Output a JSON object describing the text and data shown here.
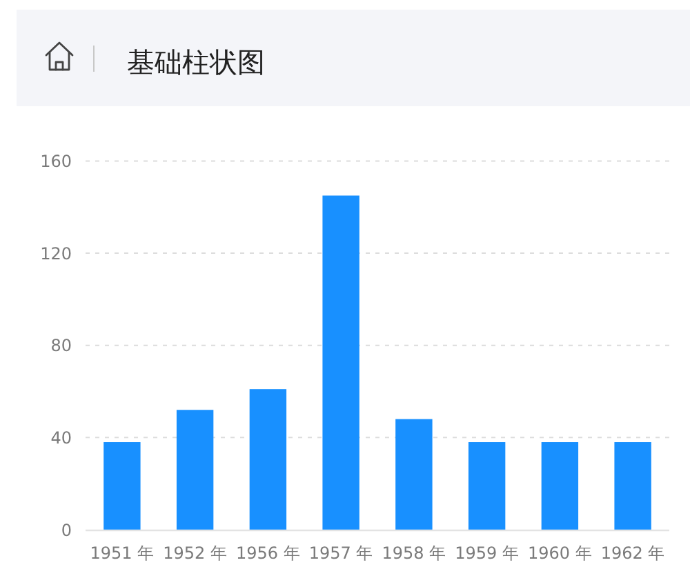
{
  "chart_data": {
    "type": "bar",
    "title": "基础柱状图",
    "categories": [
      "1951 年",
      "1952 年",
      "1956 年",
      "1957 年",
      "1958 年",
      "1959 年",
      "1960 年",
      "1962 年"
    ],
    "values": [
      38,
      52,
      61,
      145,
      48,
      38,
      38,
      38
    ],
    "color": "#1890ff",
    "ylim": [
      0,
      160
    ],
    "yticks": [
      0,
      40,
      80,
      120,
      160
    ],
    "grid": "y"
  }
}
